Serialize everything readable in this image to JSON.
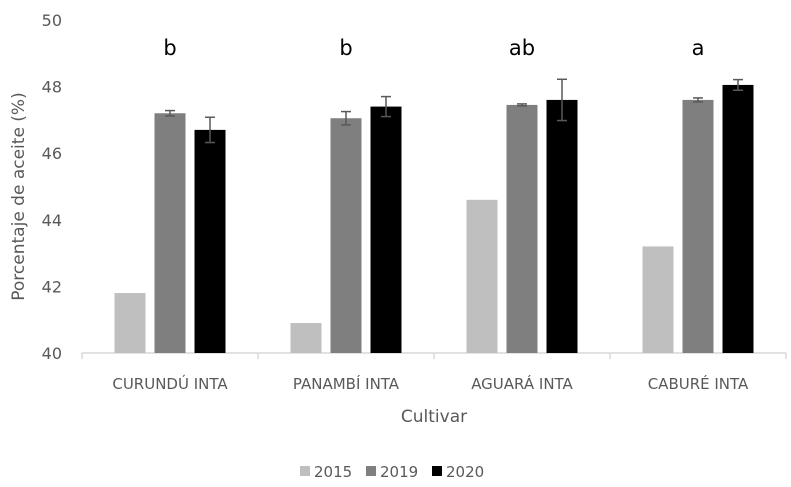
{
  "chart_data": {
    "type": "bar",
    "categories": [
      "CURUNDÚ INTA",
      "PANAMBÍ INTA",
      "AGUARÁ INTA",
      "CABURÉ INTA"
    ],
    "series": [
      {
        "name": "2015",
        "color": "#bfbfbf",
        "values": [
          41.8,
          40.9,
          44.6,
          43.2
        ],
        "errors": [
          null,
          null,
          null,
          null
        ]
      },
      {
        "name": "2019",
        "color": "#7f7f7f",
        "values": [
          47.2,
          47.05,
          47.45,
          47.6
        ],
        "errors": [
          0.08,
          0.2,
          0.03,
          0.06
        ]
      },
      {
        "name": "2020",
        "color": "#000000",
        "values": [
          46.7,
          47.4,
          47.6,
          48.05
        ],
        "errors": [
          0.38,
          0.3,
          0.62,
          0.16
        ]
      }
    ],
    "significance_letters": [
      "b",
      "b",
      "ab",
      "a"
    ],
    "xlabel": "Cultivar",
    "ylabel": "Porcentaje de aceite (%)",
    "ylim": [
      40,
      50
    ],
    "yticks": [
      40,
      42,
      44,
      46,
      48,
      50
    ],
    "grid": false,
    "legend_position": "bottom"
  }
}
